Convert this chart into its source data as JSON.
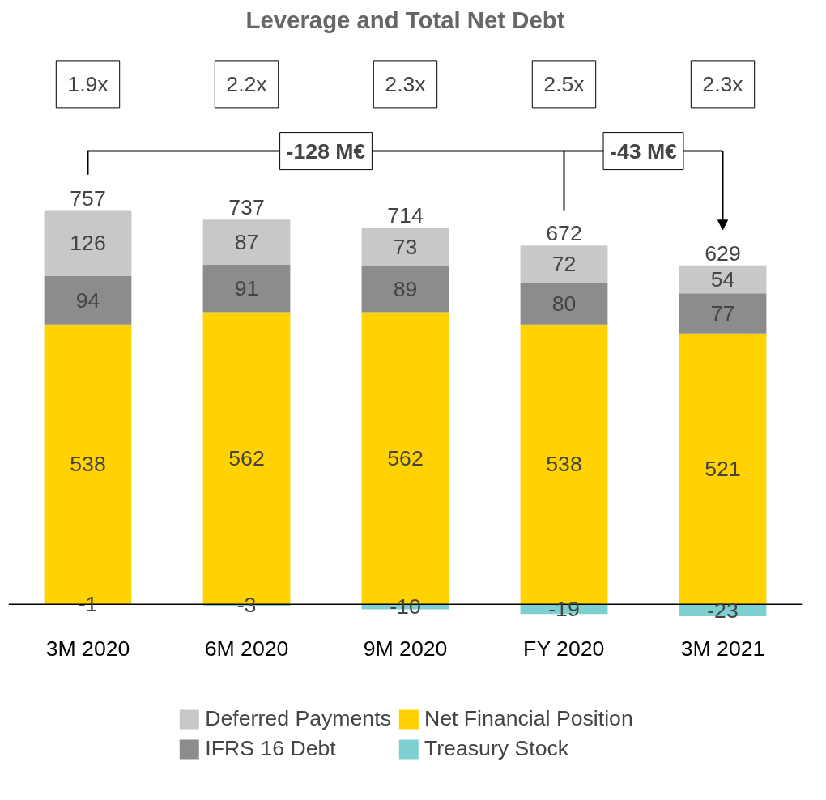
{
  "chart_data": {
    "type": "bar",
    "title": "Leverage and Total Net Debt",
    "stacked": true,
    "data_labels": true,
    "legend": "bottom",
    "grid": false,
    "tick_labels": "x",
    "categories": [
      "3M 2020",
      "6M 2020",
      "9M 2020",
      "FY 2020",
      "3M 2021"
    ],
    "series": [
      {
        "name": "Net Financial Position",
        "color": "#ffd200",
        "values": [
          538,
          562,
          562,
          538,
          521
        ]
      },
      {
        "name": "IFRS 16 Debt",
        "color": "#8c8c8c",
        "values": [
          94,
          91,
          89,
          80,
          77
        ]
      },
      {
        "name": "Deferred Payments",
        "color": "#c8c8c8",
        "values": [
          126,
          87,
          73,
          72,
          54
        ]
      },
      {
        "name": "Treasury Stock",
        "color": "#7ecfcf",
        "values": [
          -1,
          -3,
          -10,
          -19,
          -23
        ]
      }
    ],
    "totals": [
      "757",
      "737",
      "714",
      "672",
      "629"
    ],
    "annotations": [
      "1.9x",
      "2.2x",
      "2.3x",
      "2.5x",
      "2.3x",
      "-128 M€",
      "-43 M€"
    ]
  }
}
